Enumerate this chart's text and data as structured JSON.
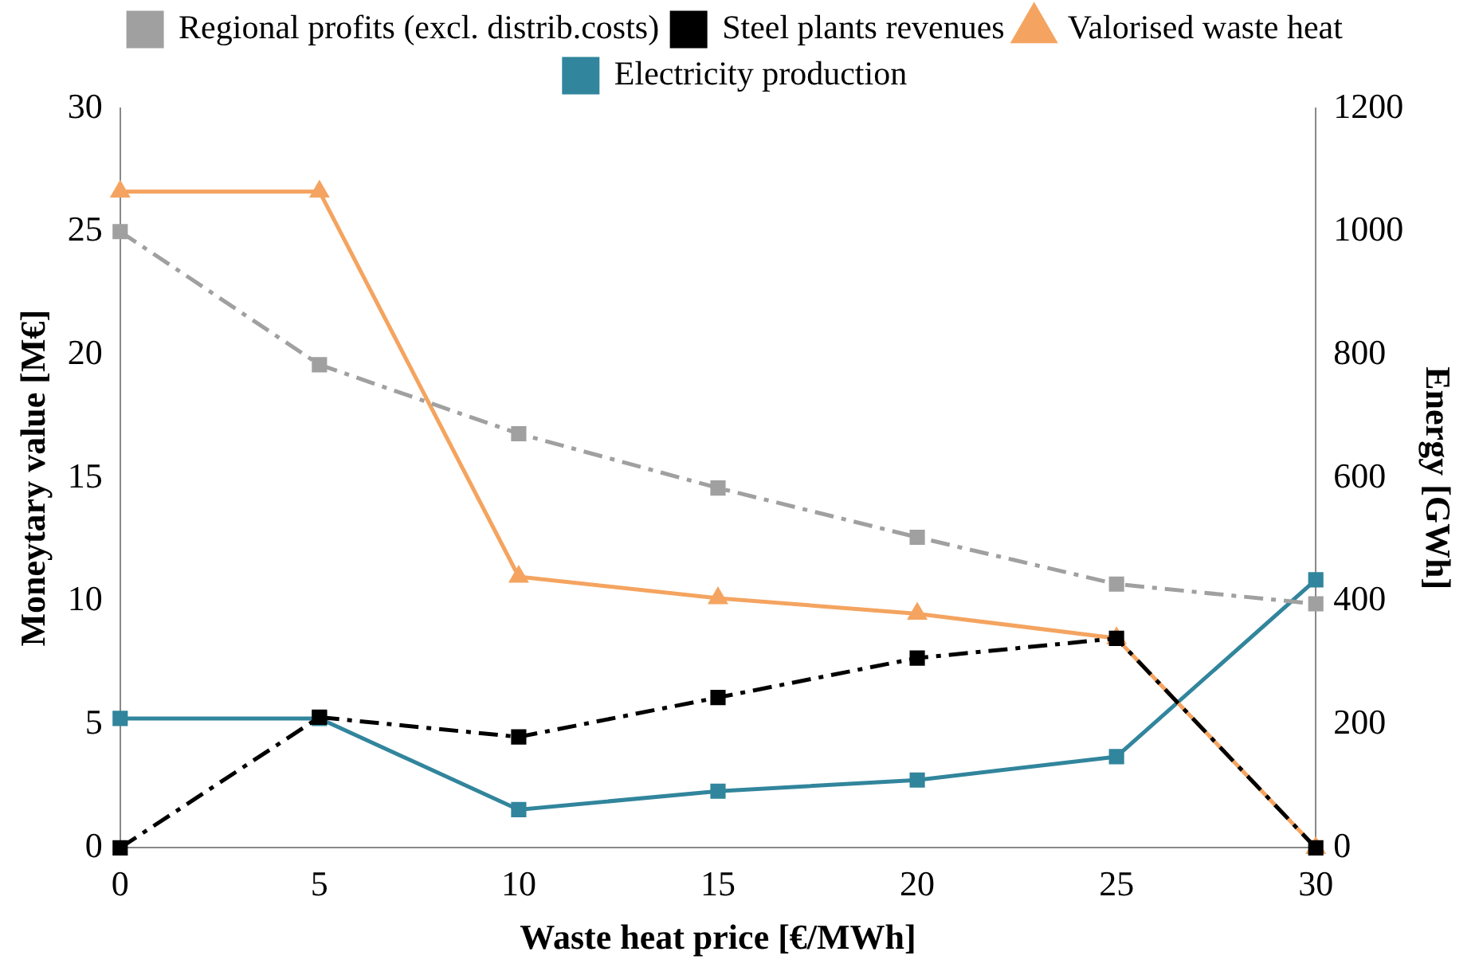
{
  "chart_data": {
    "type": "line",
    "xlabel": "Waste heat price [€/MWh]",
    "ylabel": "Moneytary value [M€]",
    "y2label": "Energy [GWh]",
    "x": [
      0,
      5,
      10,
      15,
      20,
      25,
      30
    ],
    "series": [
      {
        "name": "Regional profits (excl. distrib.costs)",
        "color": "#a0a0a0",
        "values": [
          25,
          19.6,
          16.8,
          14.6,
          12.6,
          10.7,
          9.9
        ],
        "marker": "square",
        "line_style": "dashdot"
      },
      {
        "name": "Steel plants revenues",
        "color": "#000000",
        "values": [
          0,
          5.3,
          4.5,
          6.1,
          7.7,
          8.5,
          0
        ],
        "marker": "square",
        "line_style": "dashdot"
      },
      {
        "name": "Valorised waste heat",
        "color": "#f4a460",
        "values": [
          1065,
          1065,
          440,
          405,
          380,
          340,
          0
        ],
        "marker": "triangle",
        "line_style": "solid",
        "axis": "y2"
      },
      {
        "name": "Electricity production",
        "color": "#31859c",
        "values": [
          210,
          210,
          62,
          92,
          110,
          148,
          435
        ],
        "marker": "square",
        "line_style": "solid",
        "axis": "y2"
      }
    ],
    "xlim": [
      0,
      30
    ],
    "xticks": [
      0,
      5,
      10,
      15,
      20,
      25,
      30
    ],
    "ylim": [
      0,
      30
    ],
    "yticks": [
      0,
      5,
      10,
      15,
      20,
      25,
      30
    ],
    "y2lim": [
      0,
      1200
    ],
    "y2ticks": [
      0,
      200,
      400,
      600,
      800,
      1000,
      1200
    ],
    "grid": false,
    "legend": "top"
  }
}
